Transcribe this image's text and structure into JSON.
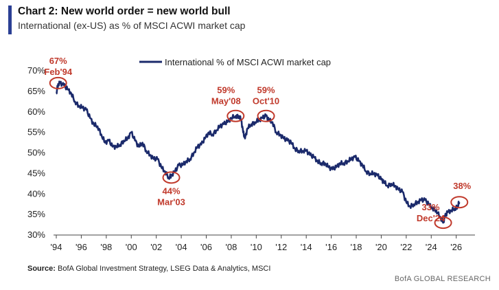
{
  "header": {
    "title": "Chart 2: New world order = new world bull",
    "subtitle": "International (ex-US) as % of MSCI ACWI market cap"
  },
  "footer": {
    "source_label": "Source:",
    "source_text": " BofA Global Investment Strategy, LSEG Data & Analytics, MSCI",
    "brand": "BofA GLOBAL RESEARCH"
  },
  "colors": {
    "series": "#1b2a6b",
    "annotation": "#c0392b",
    "accent": "#2b3f94"
  },
  "chart_data": {
    "type": "line",
    "title": "Chart 2: New world order = new world bull",
    "xlabel": "",
    "ylabel": "",
    "xlim": [
      1994,
      2027.5
    ],
    "ylim": [
      30,
      70
    ],
    "x_ticks": [
      1994,
      1996,
      1998,
      2000,
      2002,
      2004,
      2006,
      2008,
      2010,
      2012,
      2014,
      2016,
      2018,
      2020,
      2022,
      2024,
      2026
    ],
    "x_tick_labels": [
      "'94",
      "'96",
      "'98",
      "'00",
      "'02",
      "'04",
      "'06",
      "'08",
      "'10",
      "'12",
      "'14",
      "'16",
      "'18",
      "'20",
      "'22",
      "'24",
      "'26"
    ],
    "y_ticks": [
      30,
      35,
      40,
      45,
      50,
      55,
      60,
      65,
      70
    ],
    "y_tick_labels": [
      "30%",
      "35%",
      "40%",
      "45%",
      "50%",
      "55%",
      "60%",
      "65%",
      "70%"
    ],
    "legend": "top-center",
    "series": [
      {
        "name": "International % of MSCI ACWI market cap",
        "x": [
          1994.0,
          1994.15,
          1994.3,
          1994.6,
          1994.9,
          1995.2,
          1995.5,
          1995.8,
          1996.1,
          1996.4,
          1996.7,
          1997.0,
          1997.3,
          1997.6,
          1997.9,
          1998.2,
          1998.5,
          1998.8,
          1999.1,
          1999.4,
          1999.7,
          2000.0,
          2000.3,
          2000.6,
          2000.9,
          2001.2,
          2001.5,
          2001.8,
          2002.1,
          2002.4,
          2002.7,
          2003.0,
          2003.2,
          2003.5,
          2003.8,
          2004.1,
          2004.4,
          2004.7,
          2005.0,
          2005.3,
          2005.6,
          2005.9,
          2006.2,
          2006.5,
          2006.8,
          2007.1,
          2007.4,
          2007.7,
          2008.0,
          2008.35,
          2008.6,
          2008.8,
          2008.95,
          2009.1,
          2009.3,
          2009.6,
          2009.9,
          2010.2,
          2010.5,
          2010.78,
          2011.0,
          2011.3,
          2011.6,
          2011.9,
          2012.2,
          2012.5,
          2012.8,
          2013.1,
          2013.4,
          2013.7,
          2014.0,
          2014.3,
          2014.6,
          2014.9,
          2015.2,
          2015.5,
          2015.8,
          2016.1,
          2016.4,
          2016.7,
          2017.0,
          2017.3,
          2017.6,
          2017.9,
          2018.2,
          2018.5,
          2018.8,
          2019.1,
          2019.4,
          2019.7,
          2020.0,
          2020.2,
          2020.5,
          2020.8,
          2021.1,
          2021.4,
          2021.7,
          2022.0,
          2022.3,
          2022.6,
          2022.9,
          2023.2,
          2023.5,
          2023.8,
          2024.1,
          2024.4,
          2024.7,
          2024.95,
          2025.1,
          2025.3,
          2025.6,
          2025.9,
          2026.1,
          2026.25
        ],
        "values": [
          64.5,
          66.8,
          67,
          66.5,
          65.5,
          64.5,
          62.5,
          61.5,
          61,
          60.5,
          58.5,
          57,
          56.5,
          54.5,
          52.5,
          53,
          51.5,
          51.5,
          52,
          53,
          53.5,
          55,
          53,
          51.5,
          52.5,
          50.5,
          49.5,
          48.5,
          48.5,
          46.5,
          45.5,
          44,
          44.5,
          45.5,
          47,
          47,
          48,
          48.5,
          50,
          51.5,
          52,
          53.5,
          55,
          54.5,
          55.5,
          56.5,
          57,
          57.5,
          58.5,
          59,
          59,
          58,
          55,
          53.5,
          56,
          57,
          57.5,
          58,
          58.5,
          59,
          58,
          57.5,
          55,
          54.5,
          53.5,
          53,
          52.5,
          51,
          50.5,
          50.5,
          50.5,
          49.5,
          49,
          48,
          47.5,
          47.5,
          46.5,
          46,
          46.5,
          47.5,
          47.5,
          48,
          48.5,
          49,
          48,
          47,
          45.5,
          45,
          45,
          44.5,
          43.5,
          43,
          42,
          42.5,
          42,
          41,
          40.5,
          38,
          37,
          37.5,
          38,
          38.5,
          38.5,
          37.5,
          36.5,
          36,
          34.5,
          33,
          34.5,
          35.5,
          36,
          36.5,
          37,
          38
        ]
      }
    ],
    "annotations": [
      {
        "value": "67%",
        "date": "Feb'94",
        "x": 1994.15,
        "y": 67
      },
      {
        "value": "44%",
        "date": "Mar'03",
        "x": 2003.2,
        "y": 44
      },
      {
        "value": "59%",
        "date": "May'08",
        "x": 2008.35,
        "y": 59
      },
      {
        "value": "59%",
        "date": "Oct'10",
        "x": 2010.78,
        "y": 59
      },
      {
        "value": "33%",
        "date": "Dec'24",
        "x": 2024.95,
        "y": 33
      },
      {
        "value": "38%",
        "date": "",
        "x": 2026.25,
        "y": 38
      }
    ]
  }
}
